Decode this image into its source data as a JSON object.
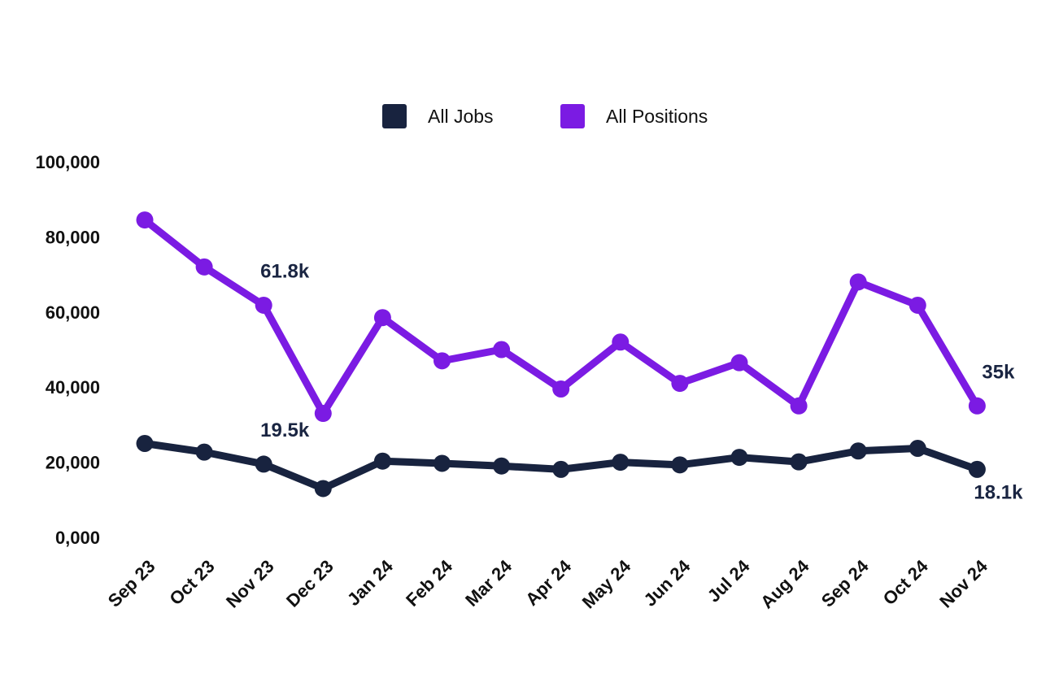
{
  "chart_data": {
    "type": "line",
    "categories": [
      "Sep 23",
      "Oct 23",
      "Nov 23",
      "Dec 23",
      "Jan 24",
      "Feb 24",
      "Mar 24",
      "Apr 24",
      "May 24",
      "Jun 24",
      "Jul 24",
      "Aug 24",
      "Sep 24",
      "Oct 24",
      "Nov 24"
    ],
    "y_ticks": [
      "0,000",
      "20,000",
      "40,000",
      "60,000",
      "80,000",
      "100,000"
    ],
    "ylim": [
      0,
      100000
    ],
    "grid": false,
    "legend_position": "top-center",
    "series": [
      {
        "name": "All Jobs",
        "color": "#18233f",
        "values": [
          25000,
          22700,
          19500,
          13000,
          20300,
          19700,
          19000,
          18100,
          20000,
          19300,
          21300,
          20100,
          23000,
          23700,
          18100
        ],
        "labels": [
          {
            "index": 2,
            "text": "19.5k",
            "position": "above"
          },
          {
            "index": 14,
            "text": "18.1k",
            "position": "below"
          }
        ]
      },
      {
        "name": "All Positions",
        "color": "#7b1be3",
        "values": [
          84500,
          72000,
          61800,
          33000,
          58500,
          47000,
          50000,
          39500,
          52000,
          41000,
          46500,
          35000,
          68000,
          61800,
          35000
        ],
        "labels": [
          {
            "index": 2,
            "text": "61.8k",
            "position": "above"
          },
          {
            "index": 14,
            "text": "35k",
            "position": "above"
          }
        ]
      }
    ]
  }
}
